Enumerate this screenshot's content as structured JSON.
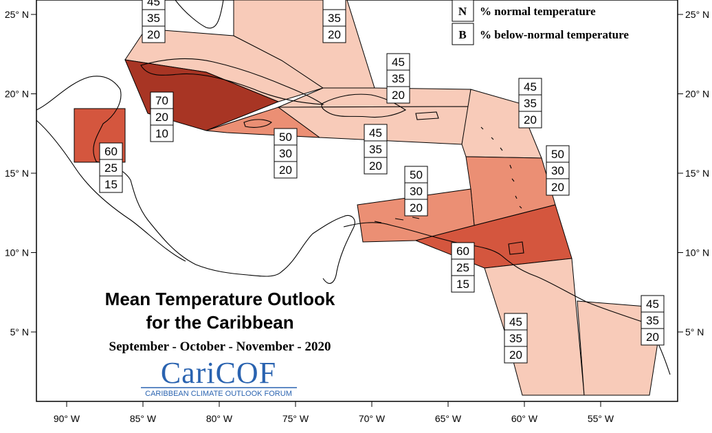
{
  "title_line1": "Mean Temperature Outlook",
  "title_line2": "for the Caribbean",
  "subtitle": "September - October - November - 2020",
  "logo": {
    "text": "CariCOF",
    "subtitle": "CARIBBEAN CLIMATE OUTLOOK FORUM"
  },
  "legend": [
    {
      "key": "N",
      "text": "% normal temperature"
    },
    {
      "key": "B",
      "text": "% below-normal temperature"
    }
  ],
  "x_ticks": [
    "90° W",
    "85° W",
    "80° W",
    "75° W",
    "70° W",
    "65° W",
    "60° W",
    "55° W"
  ],
  "y_ticks": [
    "25° N",
    "20° N",
    "15° N",
    "10° N",
    "5° N"
  ],
  "colors": {
    "above_45": "#f8cbb9",
    "above_50": "#eb8f74",
    "above_60": "#d4563e",
    "above_70": "#a83524",
    "border": "#000000"
  },
  "regions": [
    {
      "name": "bahamas-north",
      "values": [
        "45",
        "35",
        "20"
      ]
    },
    {
      "name": "bahamas-central",
      "values": [
        "",
        "35",
        "20"
      ]
    },
    {
      "name": "turks-caicos",
      "values": [
        "45",
        "35",
        "20"
      ]
    },
    {
      "name": "cuba-west",
      "values": [
        "70",
        "20",
        "10"
      ]
    },
    {
      "name": "belize",
      "values": [
        "60",
        "25",
        "15"
      ]
    },
    {
      "name": "jamaica",
      "values": [
        "50",
        "30",
        "20"
      ]
    },
    {
      "name": "hispaniola-puerto-rico",
      "values": [
        "45",
        "35",
        "20"
      ]
    },
    {
      "name": "leeward-islands",
      "values": [
        "45",
        "35",
        "20"
      ]
    },
    {
      "name": "windward-islands",
      "values": [
        "50",
        "30",
        "20"
      ]
    },
    {
      "name": "abc-islands",
      "values": [
        "50",
        "30",
        "20"
      ]
    },
    {
      "name": "trinidad-tobago",
      "values": [
        "60",
        "25",
        "15"
      ]
    },
    {
      "name": "guyana",
      "values": [
        "45",
        "35",
        "20"
      ]
    },
    {
      "name": "suriname-french-guiana",
      "values": [
        "45",
        "35",
        "20"
      ]
    }
  ]
}
